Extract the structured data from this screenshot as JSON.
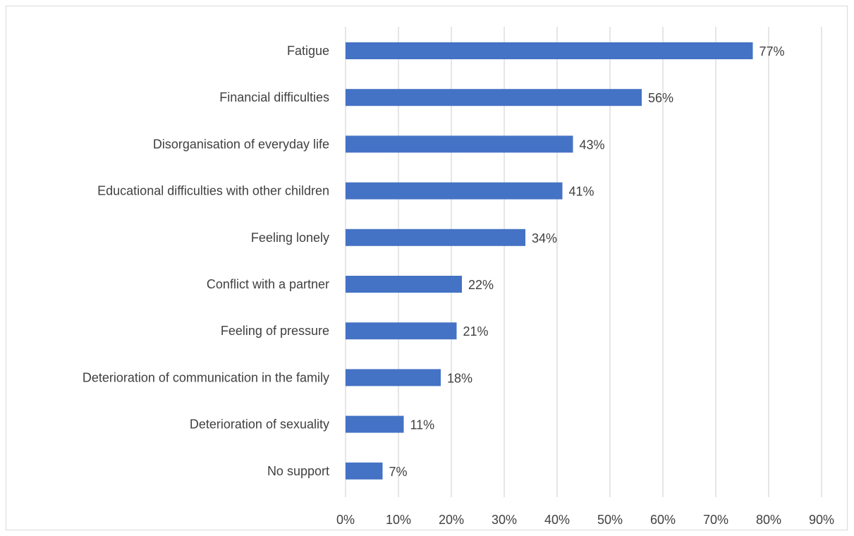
{
  "chart_data": {
    "type": "bar",
    "orientation": "horizontal",
    "title": "",
    "xlabel": "",
    "ylabel": "",
    "categories": [
      "Fatigue",
      "Financial difficulties",
      "Disorganisation of everyday life",
      "Educational difficulties with other children",
      "Feeling lonely",
      "Conflict with a partner",
      "Feeling of pressure",
      "Deterioration of communication in the family",
      "Deterioration of sexuality",
      "No support"
    ],
    "values": [
      77,
      56,
      43,
      41,
      34,
      22,
      21,
      18,
      11,
      7
    ],
    "value_labels": [
      "77%",
      "56%",
      "43%",
      "41%",
      "34%",
      "22%",
      "21%",
      "18%",
      "11%",
      "7%"
    ],
    "xlim": [
      0,
      90
    ],
    "x_ticks": [
      0,
      10,
      20,
      30,
      40,
      50,
      60,
      70,
      80,
      90
    ],
    "x_tick_labels": [
      "0%",
      "10%",
      "20%",
      "30%",
      "40%",
      "50%",
      "60%",
      "70%",
      "80%",
      "90%"
    ],
    "grid": "vertical",
    "legend": "none",
    "bar_color": "#4472c4",
    "grid_color": "#d9d9d9",
    "text_color": "#404040"
  }
}
